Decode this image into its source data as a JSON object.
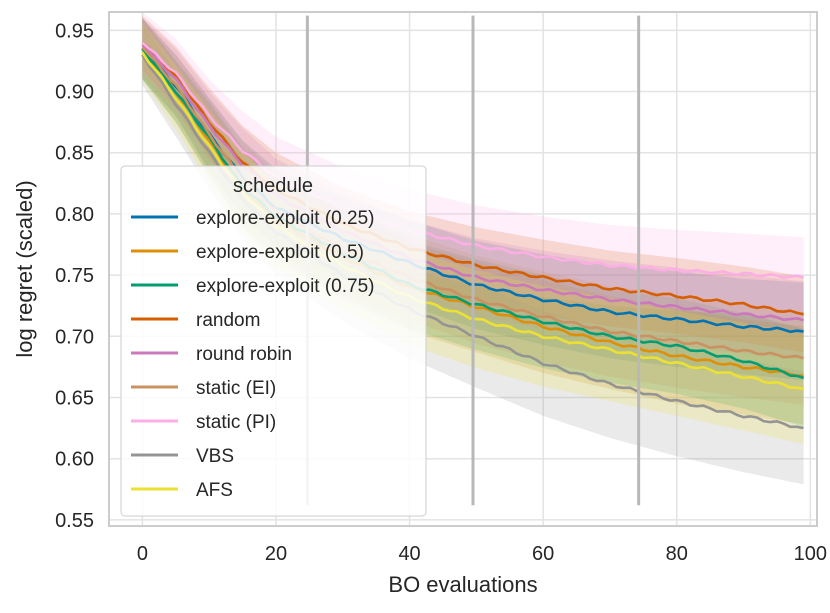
{
  "chart_data": {
    "type": "line",
    "xlabel": "BO evaluations",
    "ylabel": "log regret (scaled)",
    "xlim": [
      -5,
      101
    ],
    "ylim": [
      0.545,
      0.965
    ],
    "xticks": [
      0,
      20,
      40,
      60,
      80,
      100
    ],
    "xtick_labels": [
      "0",
      "20",
      "40",
      "60",
      "80",
      "100"
    ],
    "yticks": [
      0.55,
      0.6,
      0.65,
      0.7,
      0.75,
      0.8,
      0.85,
      0.9,
      0.95
    ],
    "ytick_labels": [
      "0.55",
      "0.60",
      "0.65",
      "0.70",
      "0.75",
      "0.80",
      "0.85",
      "0.90",
      "0.95"
    ],
    "grid": true,
    "vlines": [
      {
        "x": 24.7,
        "ymin": 0.562,
        "ymax": 0.962
      },
      {
        "x": 49.5,
        "ymin": 0.562,
        "ymax": 0.962
      },
      {
        "x": 74.3,
        "ymin": 0.562,
        "ymax": 0.962
      }
    ],
    "legend": {
      "title": "schedule",
      "loc": "upper-left"
    },
    "series": [
      {
        "name": "explore-exploit (0.25)",
        "color": "#0173b2",
        "x": [
          0,
          5,
          10,
          15,
          20,
          30,
          40,
          50,
          60,
          70,
          80,
          90,
          99
        ],
        "y": [
          0.935,
          0.905,
          0.865,
          0.83,
          0.805,
          0.78,
          0.76,
          0.742,
          0.73,
          0.72,
          0.714,
          0.708,
          0.704
        ],
        "band": [
          0.025,
          0.025,
          0.03,
          0.03,
          0.032,
          0.033,
          0.035,
          0.036,
          0.037,
          0.038,
          0.039,
          0.039,
          0.04
        ]
      },
      {
        "name": "explore-exploit (0.5)",
        "color": "#de8f05",
        "x": [
          0,
          5,
          10,
          15,
          20,
          30,
          40,
          50,
          60,
          70,
          80,
          90,
          99
        ],
        "y": [
          0.935,
          0.9,
          0.86,
          0.82,
          0.795,
          0.765,
          0.74,
          0.724,
          0.708,
          0.695,
          0.684,
          0.675,
          0.668
        ],
        "band": [
          0.025,
          0.025,
          0.03,
          0.032,
          0.033,
          0.035,
          0.036,
          0.037,
          0.038,
          0.038,
          0.039,
          0.039,
          0.04
        ]
      },
      {
        "name": "explore-exploit (0.75)",
        "color": "#029e73",
        "x": [
          0,
          5,
          10,
          15,
          20,
          30,
          40,
          50,
          60,
          70,
          80,
          90,
          99
        ],
        "y": [
          0.935,
          0.9,
          0.862,
          0.822,
          0.798,
          0.768,
          0.742,
          0.726,
          0.712,
          0.7,
          0.692,
          0.68,
          0.666
        ],
        "band": [
          0.025,
          0.025,
          0.03,
          0.032,
          0.033,
          0.035,
          0.036,
          0.037,
          0.038,
          0.038,
          0.039,
          0.039,
          0.04
        ]
      },
      {
        "name": "random",
        "color": "#d55e00",
        "x": [
          0,
          5,
          10,
          15,
          20,
          30,
          40,
          50,
          60,
          70,
          80,
          90,
          99
        ],
        "y": [
          0.94,
          0.912,
          0.875,
          0.842,
          0.82,
          0.792,
          0.772,
          0.758,
          0.748,
          0.739,
          0.733,
          0.726,
          0.718
        ],
        "band": [
          0.022,
          0.025,
          0.028,
          0.03,
          0.03,
          0.03,
          0.03,
          0.031,
          0.031,
          0.031,
          0.031,
          0.031,
          0.031
        ]
      },
      {
        "name": "round robin",
        "color": "#cc78bc",
        "x": [
          0,
          5,
          10,
          15,
          20,
          30,
          40,
          50,
          60,
          70,
          80,
          90,
          99
        ],
        "y": [
          0.938,
          0.91,
          0.872,
          0.84,
          0.815,
          0.786,
          0.764,
          0.748,
          0.738,
          0.73,
          0.724,
          0.718,
          0.713
        ],
        "band": [
          0.022,
          0.025,
          0.028,
          0.03,
          0.03,
          0.031,
          0.031,
          0.032,
          0.032,
          0.032,
          0.032,
          0.032,
          0.032
        ]
      },
      {
        "name": "static (EI)",
        "color": "#ca9161",
        "x": [
          0,
          5,
          10,
          15,
          20,
          30,
          40,
          50,
          60,
          70,
          80,
          90,
          99
        ],
        "y": [
          0.936,
          0.905,
          0.865,
          0.828,
          0.802,
          0.77,
          0.748,
          0.73,
          0.716,
          0.704,
          0.696,
          0.688,
          0.682
        ],
        "band": [
          0.023,
          0.025,
          0.029,
          0.031,
          0.032,
          0.034,
          0.035,
          0.036,
          0.037,
          0.037,
          0.038,
          0.038,
          0.038
        ]
      },
      {
        "name": "static (PI)",
        "color": "#fbafe4",
        "x": [
          0,
          5,
          10,
          15,
          20,
          30,
          40,
          50,
          60,
          70,
          80,
          90,
          99
        ],
        "y": [
          0.94,
          0.915,
          0.88,
          0.852,
          0.83,
          0.805,
          0.787,
          0.774,
          0.765,
          0.758,
          0.754,
          0.751,
          0.748
        ],
        "band": [
          0.025,
          0.028,
          0.03,
          0.032,
          0.033,
          0.033,
          0.033,
          0.033,
          0.033,
          0.033,
          0.033,
          0.033,
          0.033
        ]
      },
      {
        "name": "VBS",
        "color": "#949494",
        "x": [
          0,
          5,
          10,
          15,
          20,
          30,
          40,
          50,
          60,
          70,
          80,
          90,
          99
        ],
        "y": [
          0.93,
          0.89,
          0.85,
          0.812,
          0.785,
          0.75,
          0.722,
          0.7,
          0.678,
          0.661,
          0.647,
          0.635,
          0.625
        ],
        "band": [
          0.025,
          0.027,
          0.03,
          0.033,
          0.035,
          0.038,
          0.04,
          0.042,
          0.043,
          0.044,
          0.045,
          0.046,
          0.046
        ]
      },
      {
        "name": "AFS",
        "color": "#ece133",
        "x": [
          0,
          5,
          10,
          15,
          20,
          30,
          40,
          50,
          60,
          70,
          80,
          90,
          99
        ],
        "y": [
          0.932,
          0.895,
          0.855,
          0.818,
          0.79,
          0.758,
          0.732,
          0.714,
          0.7,
          0.689,
          0.678,
          0.667,
          0.657
        ],
        "band": [
          0.024,
          0.026,
          0.03,
          0.033,
          0.035,
          0.037,
          0.039,
          0.04,
          0.041,
          0.042,
          0.043,
          0.044,
          0.045
        ]
      }
    ]
  }
}
